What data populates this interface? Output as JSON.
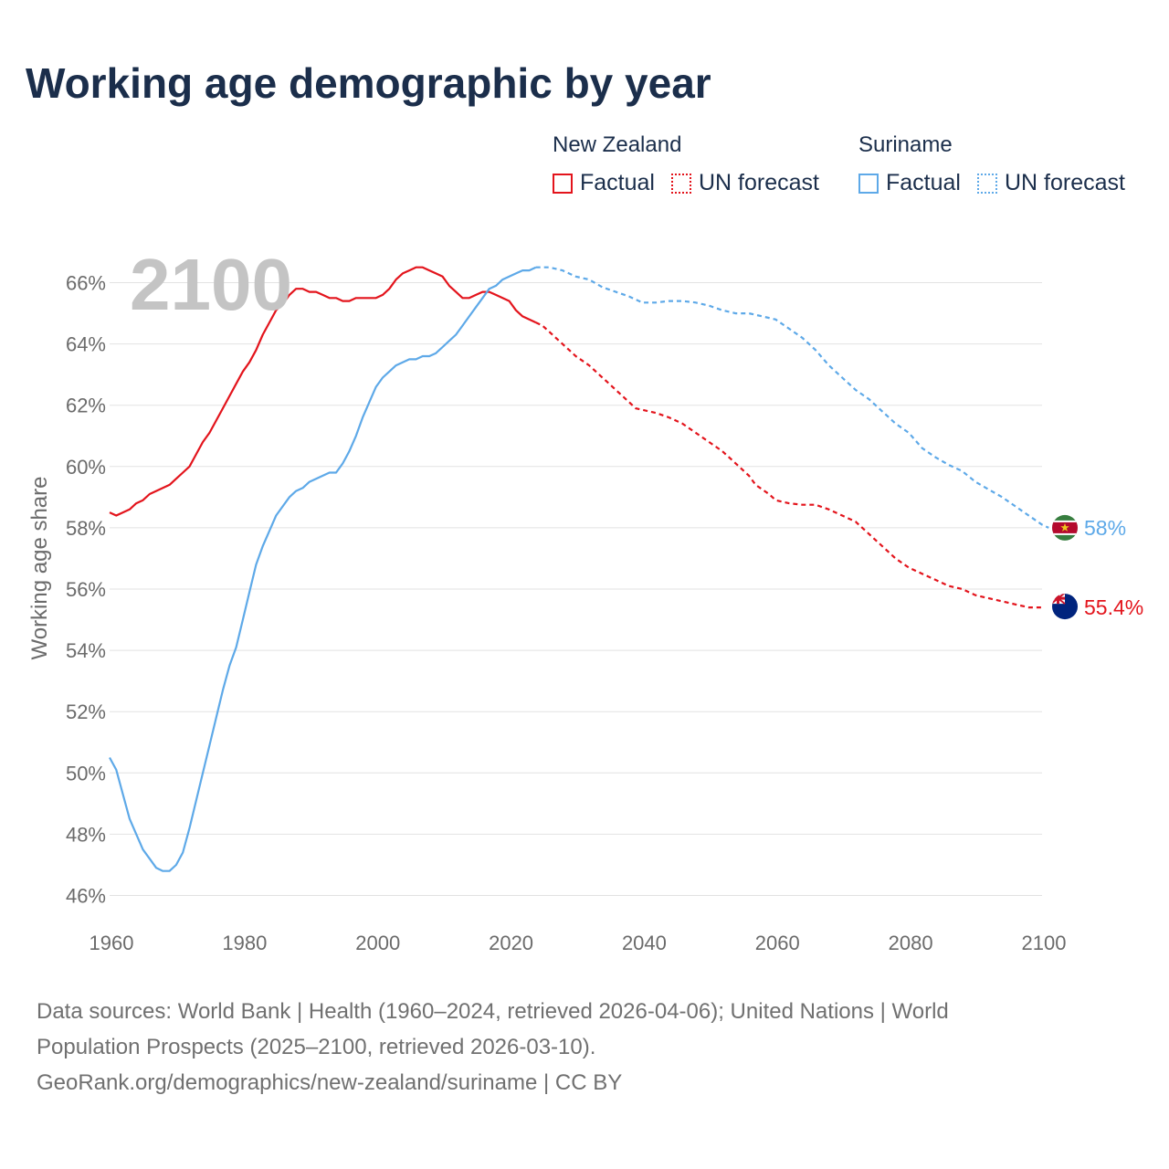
{
  "title": "Working age demographic by year",
  "year_watermark": "2100",
  "legend": {
    "groups": [
      {
        "name": "New Zealand",
        "factual_label": "Factual",
        "forecast_label": "UN forecast"
      },
      {
        "name": "Suriname",
        "factual_label": "Factual",
        "forecast_label": "UN forecast"
      }
    ]
  },
  "colors": {
    "new_zealand": "#e3141c",
    "suriname": "#5ea9e8",
    "grid": "#e2e2e2",
    "title": "#1b2e4b"
  },
  "footer": {
    "line1": "Data sources: World Bank | Health (1960–2024, retrieved 2026-04-06); United Nations | World",
    "line2": "Population Prospects (2025–2100, retrieved 2026-03-10).",
    "line3": "GeoRank.org/demographics/new-zealand/suriname | CC BY"
  },
  "chart_data": {
    "type": "line",
    "title": "Working age demographic by year",
    "xlabel": "",
    "ylabel": "Working age share",
    "xlim": [
      1960,
      2100
    ],
    "ylim": [
      46,
      66
    ],
    "x_ticks": [
      1960,
      1980,
      2000,
      2020,
      2040,
      2060,
      2080,
      2100
    ],
    "y_ticks": [
      46,
      48,
      50,
      52,
      54,
      56,
      58,
      60,
      62,
      64,
      66
    ],
    "y_tick_labels": [
      "46%",
      "48%",
      "50%",
      "52%",
      "54%",
      "56%",
      "58%",
      "60%",
      "62%",
      "64%",
      "66%"
    ],
    "x_tick_labels": [
      "1960",
      "1980",
      "2000",
      "2020",
      "2040",
      "2060",
      "2080",
      "2100"
    ],
    "factual_range": [
      1960,
      2024
    ],
    "forecast_range": [
      2024,
      2100
    ],
    "series": [
      {
        "name": "New Zealand",
        "end_label": "55.4%",
        "points": [
          [
            1960,
            58.5
          ],
          [
            1961,
            58.4
          ],
          [
            1962,
            58.5
          ],
          [
            1963,
            58.6
          ],
          [
            1964,
            58.8
          ],
          [
            1965,
            58.9
          ],
          [
            1966,
            59.1
          ],
          [
            1967,
            59.2
          ],
          [
            1968,
            59.3
          ],
          [
            1969,
            59.4
          ],
          [
            1970,
            59.6
          ],
          [
            1971,
            59.8
          ],
          [
            1972,
            60.0
          ],
          [
            1973,
            60.4
          ],
          [
            1974,
            60.8
          ],
          [
            1975,
            61.1
          ],
          [
            1976,
            61.5
          ],
          [
            1977,
            61.9
          ],
          [
            1978,
            62.3
          ],
          [
            1979,
            62.7
          ],
          [
            1980,
            63.1
          ],
          [
            1981,
            63.4
          ],
          [
            1982,
            63.8
          ],
          [
            1983,
            64.3
          ],
          [
            1984,
            64.7
          ],
          [
            1985,
            65.1
          ],
          [
            1986,
            65.3
          ],
          [
            1987,
            65.6
          ],
          [
            1988,
            65.8
          ],
          [
            1989,
            65.8
          ],
          [
            1990,
            65.7
          ],
          [
            1991,
            65.7
          ],
          [
            1992,
            65.6
          ],
          [
            1993,
            65.5
          ],
          [
            1994,
            65.5
          ],
          [
            1995,
            65.4
          ],
          [
            1996,
            65.4
          ],
          [
            1997,
            65.5
          ],
          [
            1998,
            65.5
          ],
          [
            1999,
            65.5
          ],
          [
            2000,
            65.5
          ],
          [
            2001,
            65.6
          ],
          [
            2002,
            65.8
          ],
          [
            2003,
            66.1
          ],
          [
            2004,
            66.3
          ],
          [
            2005,
            66.4
          ],
          [
            2006,
            66.5
          ],
          [
            2007,
            66.5
          ],
          [
            2008,
            66.4
          ],
          [
            2009,
            66.3
          ],
          [
            2010,
            66.2
          ],
          [
            2011,
            65.9
          ],
          [
            2012,
            65.7
          ],
          [
            2013,
            65.5
          ],
          [
            2014,
            65.5
          ],
          [
            2015,
            65.6
          ],
          [
            2016,
            65.7
          ],
          [
            2017,
            65.7
          ],
          [
            2018,
            65.6
          ],
          [
            2019,
            65.5
          ],
          [
            2020,
            65.4
          ],
          [
            2021,
            65.1
          ],
          [
            2022,
            64.9
          ],
          [
            2023,
            64.8
          ],
          [
            2024,
            64.7
          ],
          [
            2025,
            64.6
          ],
          [
            2026,
            64.4
          ],
          [
            2028,
            64.0
          ],
          [
            2030,
            63.6
          ],
          [
            2032,
            63.3
          ],
          [
            2034,
            62.9
          ],
          [
            2036,
            62.5
          ],
          [
            2038,
            62.1
          ],
          [
            2039,
            61.9
          ],
          [
            2040,
            61.85
          ],
          [
            2042,
            61.75
          ],
          [
            2044,
            61.6
          ],
          [
            2046,
            61.4
          ],
          [
            2048,
            61.1
          ],
          [
            2050,
            60.8
          ],
          [
            2052,
            60.5
          ],
          [
            2054,
            60.1
          ],
          [
            2056,
            59.7
          ],
          [
            2057,
            59.4
          ],
          [
            2059,
            59.1
          ],
          [
            2060,
            58.9
          ],
          [
            2062,
            58.8
          ],
          [
            2064,
            58.75
          ],
          [
            2066,
            58.75
          ],
          [
            2068,
            58.6
          ],
          [
            2070,
            58.4
          ],
          [
            2072,
            58.2
          ],
          [
            2074,
            57.8
          ],
          [
            2076,
            57.4
          ],
          [
            2078,
            57.0
          ],
          [
            2080,
            56.7
          ],
          [
            2082,
            56.5
          ],
          [
            2084,
            56.3
          ],
          [
            2086,
            56.1
          ],
          [
            2088,
            56.0
          ],
          [
            2090,
            55.8
          ],
          [
            2092,
            55.7
          ],
          [
            2094,
            55.6
          ],
          [
            2096,
            55.5
          ],
          [
            2098,
            55.4
          ],
          [
            2100,
            55.4
          ]
        ]
      },
      {
        "name": "Suriname",
        "end_label": "58%",
        "points": [
          [
            1960,
            50.5
          ],
          [
            1961,
            50.1
          ],
          [
            1962,
            49.3
          ],
          [
            1963,
            48.5
          ],
          [
            1964,
            48.0
          ],
          [
            1965,
            47.5
          ],
          [
            1966,
            47.2
          ],
          [
            1967,
            46.9
          ],
          [
            1968,
            46.8
          ],
          [
            1969,
            46.8
          ],
          [
            1970,
            47.0
          ],
          [
            1971,
            47.4
          ],
          [
            1972,
            48.2
          ],
          [
            1973,
            49.1
          ],
          [
            1974,
            50.0
          ],
          [
            1975,
            50.9
          ],
          [
            1976,
            51.8
          ],
          [
            1977,
            52.7
          ],
          [
            1978,
            53.5
          ],
          [
            1979,
            54.1
          ],
          [
            1980,
            55.0
          ],
          [
            1981,
            55.9
          ],
          [
            1982,
            56.8
          ],
          [
            1983,
            57.4
          ],
          [
            1984,
            57.9
          ],
          [
            1985,
            58.4
          ],
          [
            1986,
            58.7
          ],
          [
            1987,
            59.0
          ],
          [
            1988,
            59.2
          ],
          [
            1989,
            59.3
          ],
          [
            1990,
            59.5
          ],
          [
            1991,
            59.6
          ],
          [
            1992,
            59.7
          ],
          [
            1993,
            59.8
          ],
          [
            1994,
            59.8
          ],
          [
            1995,
            60.1
          ],
          [
            1996,
            60.5
          ],
          [
            1997,
            61.0
          ],
          [
            1998,
            61.6
          ],
          [
            1999,
            62.1
          ],
          [
            2000,
            62.6
          ],
          [
            2001,
            62.9
          ],
          [
            2002,
            63.1
          ],
          [
            2003,
            63.3
          ],
          [
            2004,
            63.4
          ],
          [
            2005,
            63.5
          ],
          [
            2006,
            63.5
          ],
          [
            2007,
            63.6
          ],
          [
            2008,
            63.6
          ],
          [
            2009,
            63.7
          ],
          [
            2010,
            63.9
          ],
          [
            2011,
            64.1
          ],
          [
            2012,
            64.3
          ],
          [
            2013,
            64.6
          ],
          [
            2014,
            64.9
          ],
          [
            2015,
            65.2
          ],
          [
            2016,
            65.5
          ],
          [
            2017,
            65.8
          ],
          [
            2018,
            65.9
          ],
          [
            2019,
            66.1
          ],
          [
            2020,
            66.2
          ],
          [
            2021,
            66.3
          ],
          [
            2022,
            66.4
          ],
          [
            2023,
            66.4
          ],
          [
            2024,
            66.5
          ],
          [
            2026,
            66.5
          ],
          [
            2028,
            66.4
          ],
          [
            2030,
            66.2
          ],
          [
            2032,
            66.1
          ],
          [
            2034,
            65.85
          ],
          [
            2036,
            65.7
          ],
          [
            2038,
            65.55
          ],
          [
            2040,
            65.35
          ],
          [
            2042,
            65.35
          ],
          [
            2044,
            65.4
          ],
          [
            2046,
            65.4
          ],
          [
            2048,
            65.35
          ],
          [
            2050,
            65.25
          ],
          [
            2052,
            65.1
          ],
          [
            2054,
            65.0
          ],
          [
            2056,
            65.0
          ],
          [
            2058,
            64.9
          ],
          [
            2060,
            64.8
          ],
          [
            2062,
            64.5
          ],
          [
            2064,
            64.2
          ],
          [
            2066,
            63.8
          ],
          [
            2068,
            63.3
          ],
          [
            2070,
            62.9
          ],
          [
            2072,
            62.5
          ],
          [
            2074,
            62.2
          ],
          [
            2076,
            61.8
          ],
          [
            2078,
            61.4
          ],
          [
            2080,
            61.1
          ],
          [
            2082,
            60.6
          ],
          [
            2084,
            60.3
          ],
          [
            2086,
            60.05
          ],
          [
            2088,
            59.85
          ],
          [
            2090,
            59.5
          ],
          [
            2092,
            59.25
          ],
          [
            2094,
            59.0
          ],
          [
            2096,
            58.7
          ],
          [
            2098,
            58.4
          ],
          [
            2100,
            58.1
          ],
          [
            2101,
            58.0
          ]
        ]
      }
    ]
  }
}
